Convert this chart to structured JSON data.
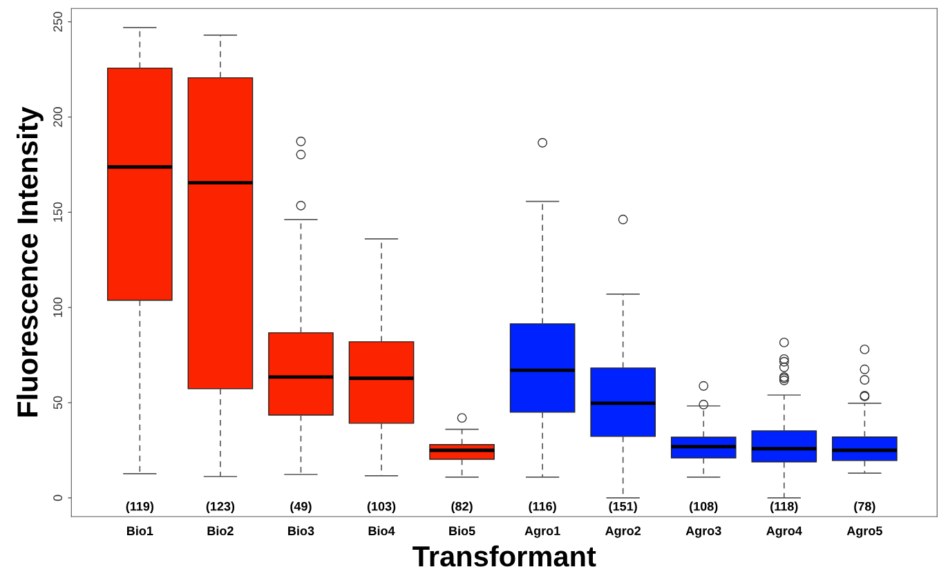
{
  "chart_data": {
    "type": "box",
    "xlabel": "Transformant",
    "ylabel": "Fluorescence Intensity",
    "categories": [
      "Bio1",
      "Bio2",
      "Bio3",
      "Bio4",
      "Bio5",
      "Agro1",
      "Agro2",
      "Agro3",
      "Agro4",
      "Agro5"
    ],
    "colors": [
      "#fb2300",
      "#fb2300",
      "#fb2300",
      "#fb2300",
      "#fb2300",
      "#0022ff",
      "#0022ff",
      "#0022ff",
      "#0022ff",
      "#0022ff"
    ],
    "boxes": [
      {
        "low": 12.7,
        "q1": 103.8,
        "median": 173.8,
        "q3": 225.7,
        "high": 247
      },
      {
        "low": 11.2,
        "q1": 57.3,
        "median": 165.5,
        "q3": 220.6,
        "high": 243
      },
      {
        "low": 12.3,
        "q1": 43.5,
        "median": 63.5,
        "q3": 86.7,
        "high": 146.2,
        "outliers": [
          153.5,
          180.3,
          187.2
        ]
      },
      {
        "low": 11.6,
        "q1": 39.2,
        "median": 62.8,
        "q3": 82,
        "high": 136
      },
      {
        "low": 10.9,
        "q1": 20.3,
        "median": 25,
        "q3": 28,
        "high": 36,
        "outliers": [
          42
        ]
      },
      {
        "low": 10.9,
        "q1": 45,
        "median": 67,
        "q3": 91.4,
        "high": 155.7,
        "outliers": [
          186.5
        ]
      },
      {
        "low": 0,
        "q1": 32.3,
        "median": 49.7,
        "q3": 68.2,
        "high": 107,
        "outliers": [
          146.2
        ]
      },
      {
        "low": 10.9,
        "q1": 21,
        "median": 26.9,
        "q3": 31.9,
        "high": 48.3,
        "outliers": [
          49,
          58.8
        ]
      },
      {
        "low": 0,
        "q1": 18.9,
        "median": 25.8,
        "q3": 35.2,
        "high": 54,
        "outliers": [
          61.7,
          62.8,
          63.5,
          68.6,
          71.5,
          72.9,
          81.6
        ]
      },
      {
        "low": 13,
        "q1": 19.6,
        "median": 25,
        "q3": 32,
        "high": 49.7,
        "outliers": [
          53.3,
          53.7,
          62,
          67.5,
          78
        ]
      }
    ],
    "ylim": [
      -9.8,
      257
    ],
    "yticks": [
      0,
      50,
      100,
      150,
      200,
      250
    ],
    "annotations": [
      "(119)",
      "(123)",
      "(49)",
      "(103)",
      "(82)",
      "(116)",
      "(151)",
      "(108)",
      "(118)",
      "(78)"
    ],
    "grid": false,
    "legend": false
  }
}
